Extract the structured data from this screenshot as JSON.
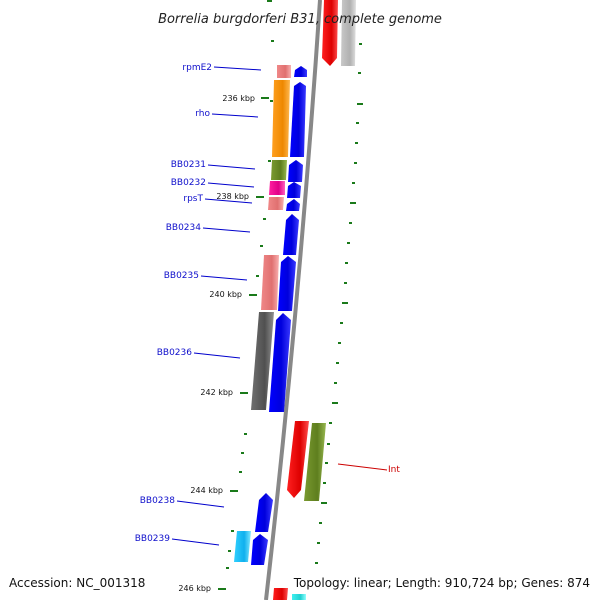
{
  "title": "Borrelia burgdorferi B31, complete genome",
  "footer": {
    "accession": "Accession: NC_001318",
    "summary": "Topology: linear; Length: 910,724 bp; Genes: 874"
  },
  "scale_labels": [
    "236 kbp",
    "238 kbp",
    "240 kbp",
    "242 kbp",
    "244 kbp",
    "246 kbp"
  ],
  "gene_labels": [
    "rpmE2",
    "rho",
    "BB0231",
    "BB0232",
    "rpsT",
    "BB0234",
    "BB0235",
    "BB0236",
    "Int",
    "BB0238",
    "BB0239"
  ],
  "colors": {
    "backbone": "#888888",
    "forward_cds": "#0000ee",
    "reverse_cds": "#ff0000",
    "tick": "#1a7a1a",
    "label_line_blue": "#0000cc",
    "label_line_red": "#cc0000"
  }
}
